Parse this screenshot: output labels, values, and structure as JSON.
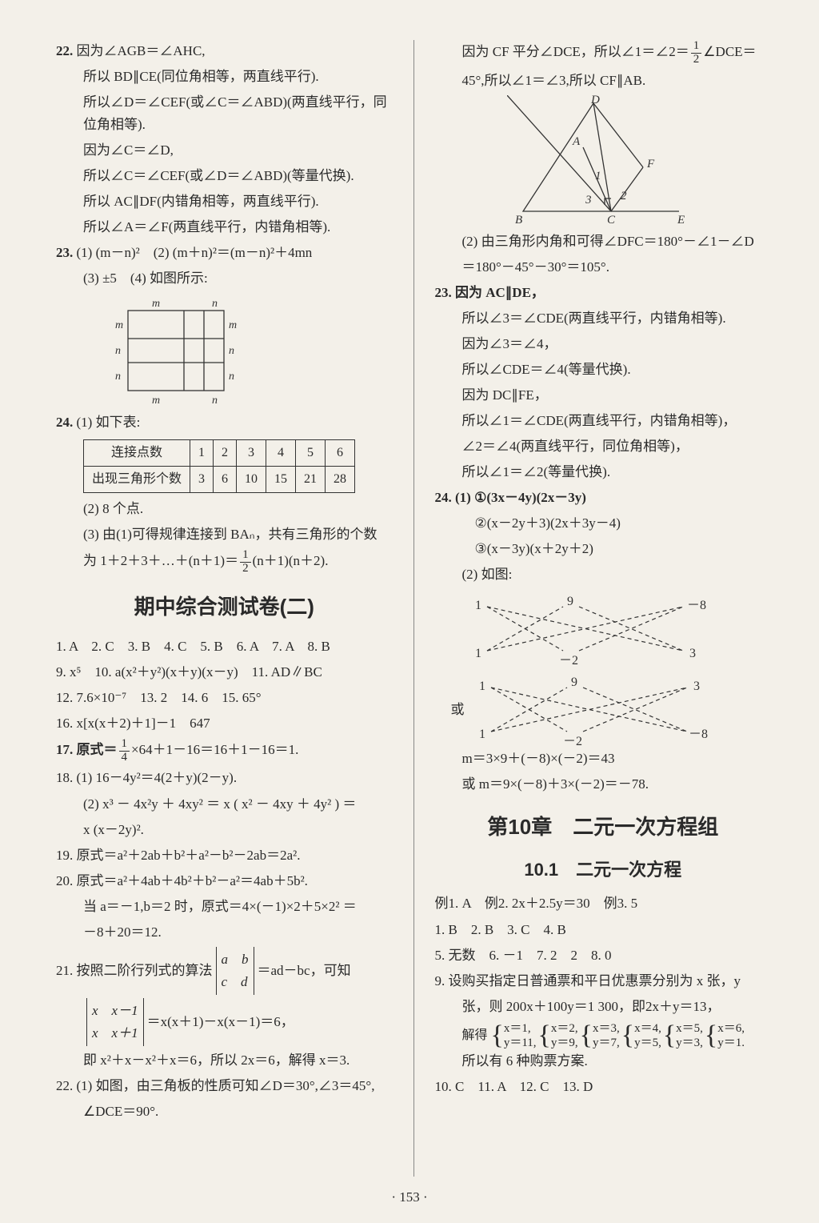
{
  "page_number": "· 153 ·",
  "left": {
    "q22": {
      "l1": "因为∠AGB＝∠AHC,",
      "l2": "所以 BD∥CE(同位角相等，两直线平行).",
      "l3": "所以∠D＝∠CEF(或∠C＝∠ABD)(两直线平行，同位角相等).",
      "l4": "因为∠C＝∠D,",
      "l5": "所以∠C＝∠CEF(或∠D＝∠ABD)(等量代换).",
      "l6": "所以 AC∥DF(内错角相等，两直线平行).",
      "l7": "所以∠A＝∠F(两直线平行，内错角相等)."
    },
    "q23": {
      "a": "(1) (m－n)²　(2) (m＋n)²＝(m－n)²＋4mn",
      "b": "(3) ±5　(4) 如图所示:"
    },
    "grid_labels": [
      "m",
      "n",
      "m",
      "m",
      "n",
      "n",
      "n",
      "n",
      "m",
      "n"
    ],
    "q24": {
      "a": "(1) 如下表:",
      "table_head": "连接点数",
      "table_row": "出现三角形个数",
      "cols": [
        "1",
        "2",
        "3",
        "4",
        "5",
        "6"
      ],
      "vals": [
        "3",
        "6",
        "10",
        "15",
        "21",
        "28"
      ],
      "b": "(2) 8 个点.",
      "c": "(3) 由(1)可得规律连接到 BAₙ，共有三角形的个数",
      "d_prefix": "为 1＋2＋3＋…＋(n＋1)＝",
      "d_suffix": "(n＋1)(n＋2)."
    },
    "title": "期中综合测试卷(二)",
    "ans1": "1. A　2. C　3. B　4. C　5. B　6. A　7. A　8. B",
    "ans2": "9. x⁵　10. a(x²＋y²)(x＋y)(x－y)　11. AD∥BC",
    "ans3": "12. 7.6×10⁻⁷　13. 2　14. 6　15. 65°",
    "ans4": "16. x[x(x＋2)＋1]－1　647",
    "q17_prefix": "17. 原式＝",
    "q17_suffix": "×64＋1－16＝16＋1－16＝1.",
    "q18a": "18. (1) 16－4y²＝4(2＋y)(2－y).",
    "q18b": "(2) x³ － 4x²y ＋ 4xy² ＝ x ( x² － 4xy ＋ 4y² ) ＝",
    "q18c": "x (x－2y)².",
    "q19": "19. 原式＝a²＋2ab＋b²＋a²－b²－2ab＝2a².",
    "q20a": "20. 原式＝a²＋4ab＋4b²＋b²－a²＝4ab＋5b².",
    "q20b": "当 a＝－1,b＝2 时，原式＝4×(－1)×2＋5×2² ＝",
    "q20c": "－8＋20＝12.",
    "q21a": "21. 按照二阶行列式的算法",
    "q21b": "＝ad－bc，可知",
    "q21det1": [
      [
        "a",
        "b"
      ],
      [
        "c",
        "d"
      ]
    ],
    "q21det2": [
      [
        "x",
        "x－1"
      ],
      [
        "x",
        "x＋1"
      ]
    ],
    "q21c": "＝x(x＋1)－x(x－1)＝6，",
    "q21d": "即 x²＋x－x²＋x＝6，所以 2x＝6，解得 x＝3.",
    "q22b": "22. (1) 如图，由三角板的性质可知∠D＝30°,∠3＝45°,",
    "q22c": "∠DCE＝90°."
  },
  "right": {
    "top1_a": "因为 CF 平分∠DCE，所以∠1＝∠2＝",
    "top1_b": "∠DCE＝",
    "top2": "45°,所以∠1＝∠3,所以 CF∥AB.",
    "tri_labels": {
      "D": "D",
      "A": "A",
      "F": "F",
      "B": "B",
      "C": "C",
      "E": "E",
      "1": "1",
      "2": "2",
      "3": "3"
    },
    "top3": "(2) 由三角形内角和可得∠DFC＝180°－∠1－∠D",
    "top4": "＝180°－45°－30°＝105°.",
    "q23a": "23. 因为 AC∥DE，",
    "q23b": "所以∠3＝∠CDE(两直线平行，内错角相等).",
    "q23c": "因为∠3＝∠4，",
    "q23d": "所以∠CDE＝∠4(等量代换).",
    "q23e": "因为 DC∥FE，",
    "q23f": "所以∠1＝∠CDE(两直线平行，内错角相等)，",
    "q23g": "∠2＝∠4(两直线平行，同位角相等)，",
    "q23h": "所以∠1＝∠2(等量代换).",
    "q24a": "24. (1) ①(3x－4y)(2x－3y)",
    "q24b": "②(x－2y＋3)(2x＋3y－4)",
    "q24c": "③(x－3y)(x＋2y＋2)",
    "q24d": "(2) 如图:",
    "cross1": {
      "tl": "1",
      "tr": "9",
      "tr2": "－8",
      "bl": "1",
      "br": "－2",
      "br2": "3"
    },
    "cross2": {
      "tl": "1",
      "tr": "9",
      "tr2": "3",
      "bl": "1",
      "br": "－2",
      "br2": "－8"
    },
    "or": "或",
    "q24e": "m＝3×9＋(－8)×(－2)＝43",
    "q24f": "或 m＝9×(－8)＋3×(－2)＝－78.",
    "chapter": "第10章　二元一次方程组",
    "section": "10.1　二元一次方程",
    "ex": "例1. A　例2. 2x＋2.5y＝30　例3. 5",
    "r1": "1. B　2. B　3. C　4. B",
    "r2": "5. 无数　6. －1　7. 2　2　8. 0",
    "r3": "9. 设购买指定日普通票和平日优惠票分别为 x 张，y",
    "r4": "张，则 200x＋100y＝1 300，即2x＋y＝13，",
    "r5": "解得",
    "sols": [
      {
        "x": "x＝1,",
        "y": "y＝11,"
      },
      {
        "x": "x＝2,",
        "y": "y＝9,"
      },
      {
        "x": "x＝3,",
        "y": "y＝7,"
      },
      {
        "x": "x＝4,",
        "y": "y＝5,"
      },
      {
        "x": "x＝5,",
        "y": "y＝3,"
      },
      {
        "x": "x＝6,",
        "y": "y＝1."
      }
    ],
    "r6": "所以有 6 种购票方案.",
    "r7": "10. C　11. A　12. C　13. D"
  }
}
